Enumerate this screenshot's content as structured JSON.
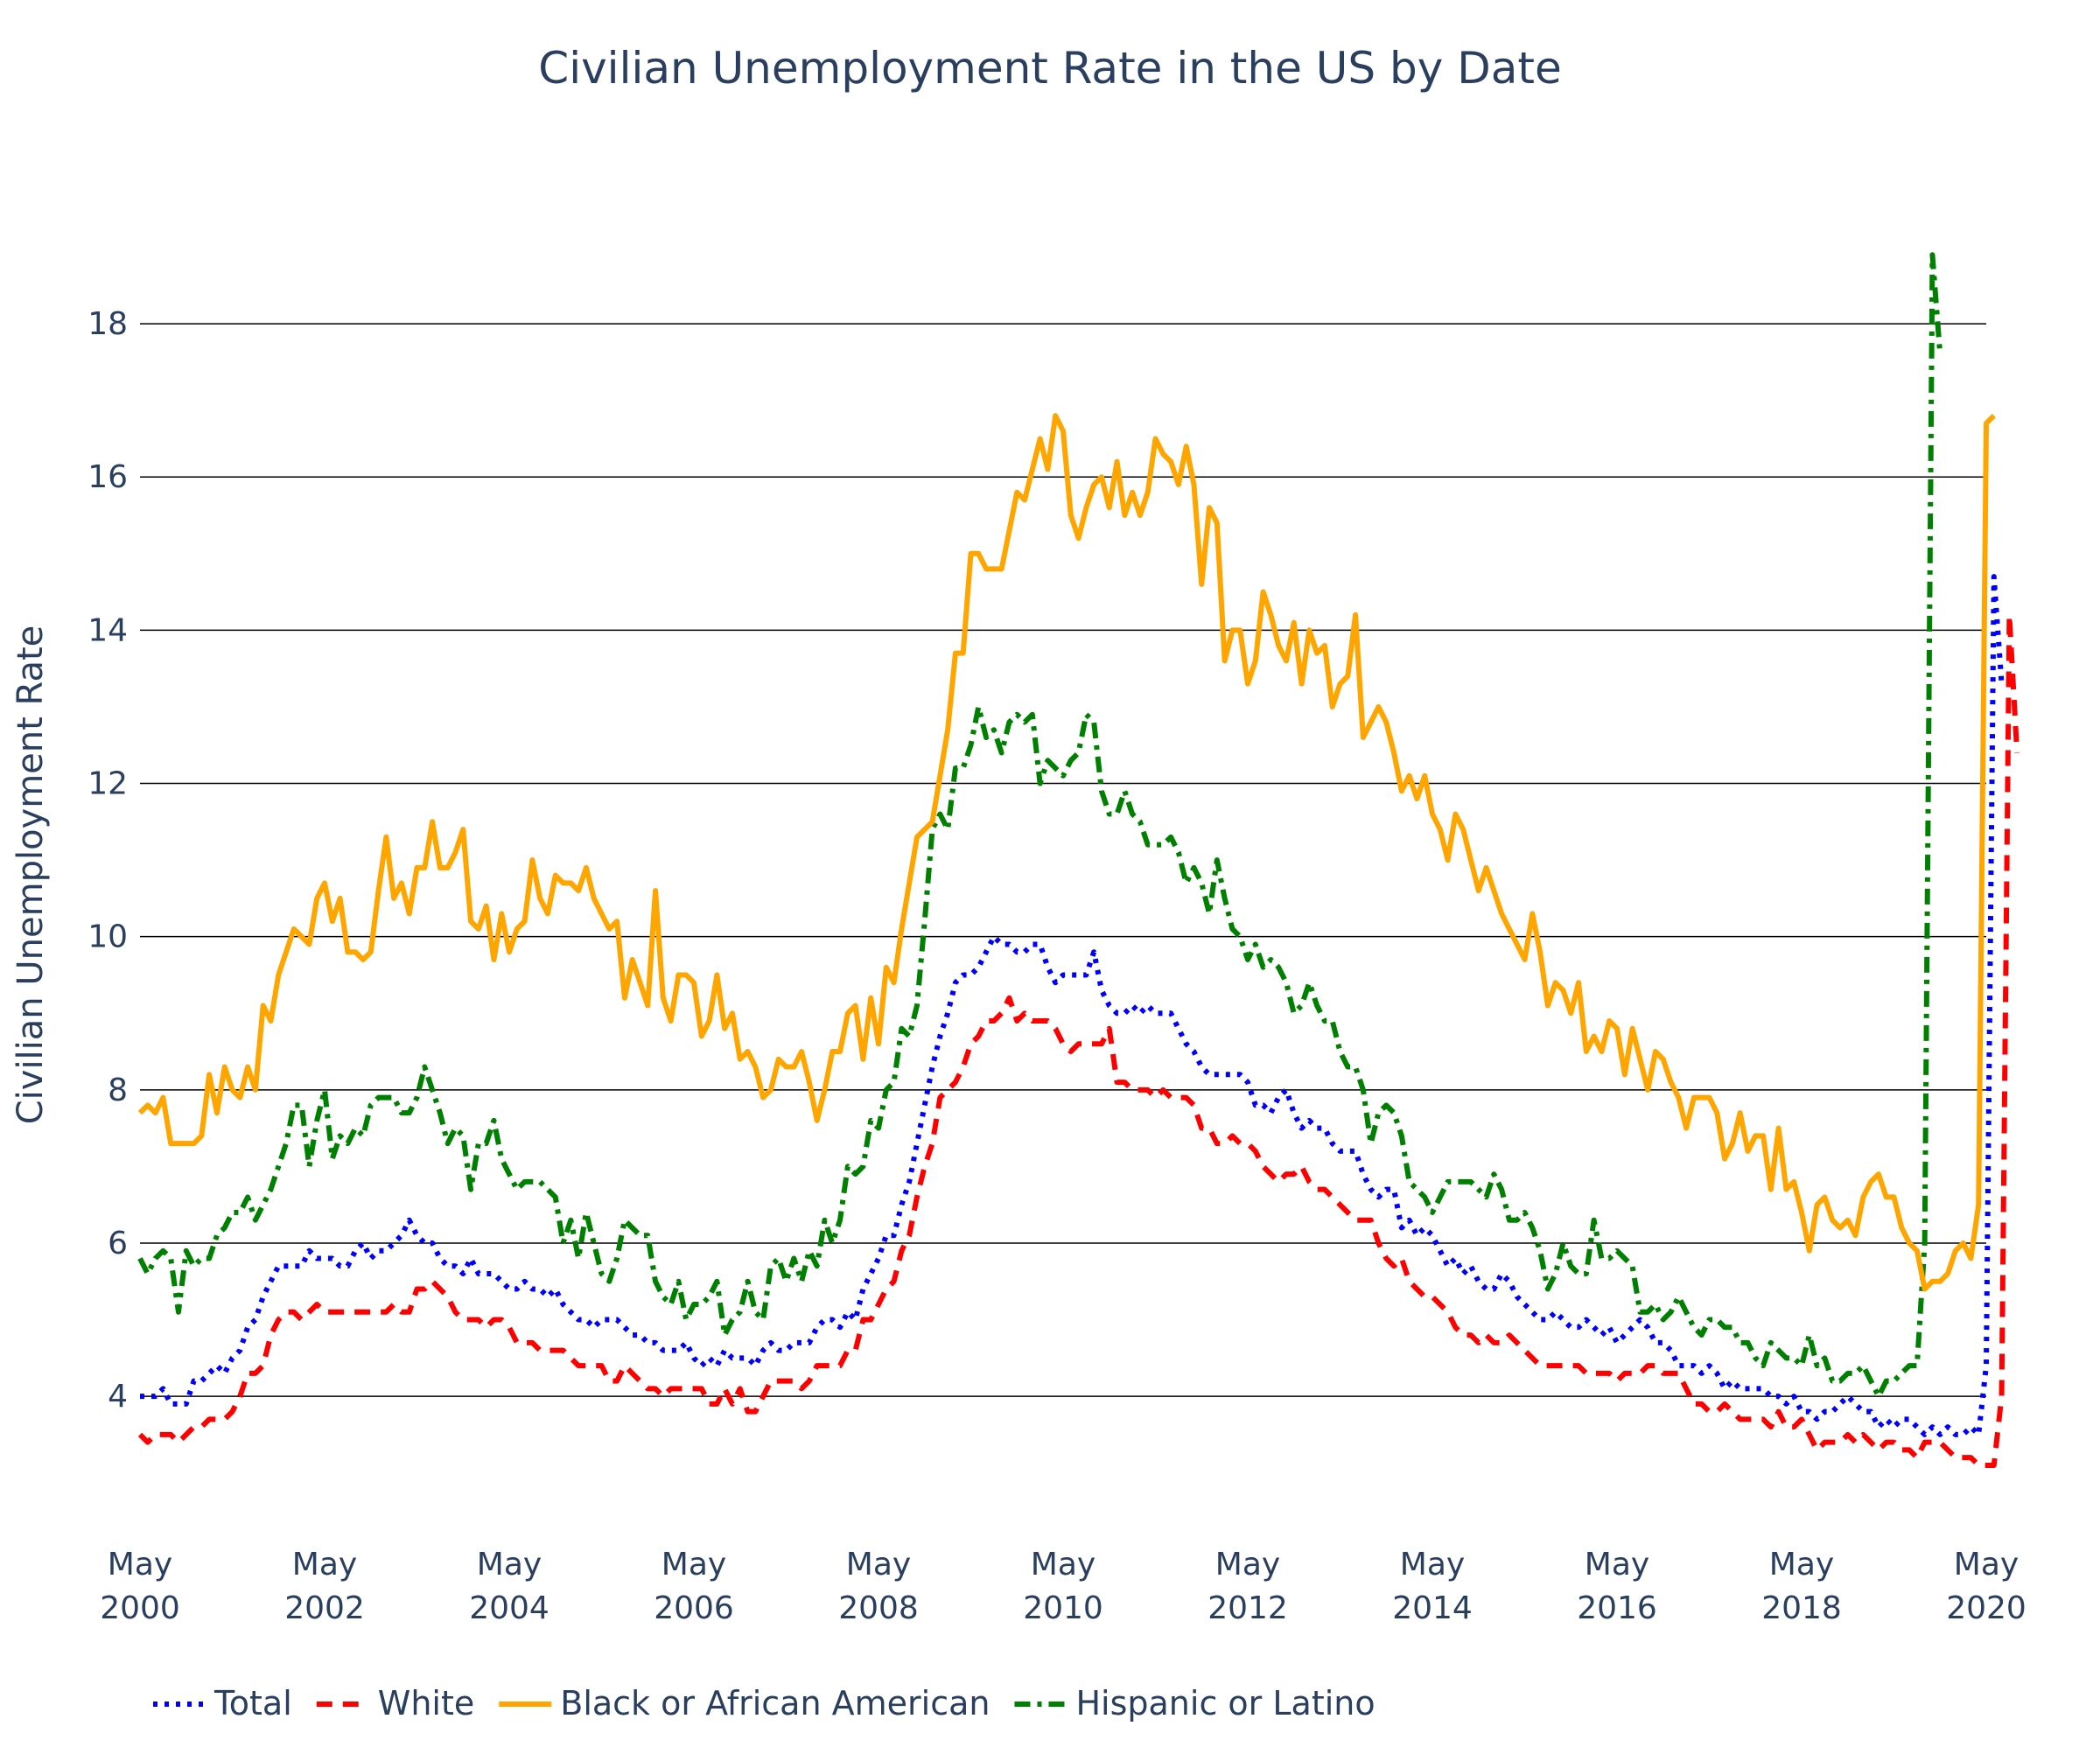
{
  "chart_data": {
    "type": "line",
    "title": "Civilian Unemployment Rate in the US by Date",
    "xlabel": "",
    "ylabel": "Civilian Unemployment Rate",
    "x_start": "2000-05",
    "x_end": "2020-05",
    "x_interval": "monthly",
    "xlim": [
      "2000-05",
      "2020-05"
    ],
    "ylim": [
      2.3,
      19.2
    ],
    "x_ticks": [
      {
        "x": "2000-05",
        "line1": "May",
        "line2": "2000"
      },
      {
        "x": "2002-05",
        "line1": "May",
        "line2": "2002"
      },
      {
        "x": "2004-05",
        "line1": "May",
        "line2": "2004"
      },
      {
        "x": "2006-05",
        "line1": "May",
        "line2": "2006"
      },
      {
        "x": "2008-05",
        "line1": "May",
        "line2": "2008"
      },
      {
        "x": "2010-05",
        "line1": "May",
        "line2": "2010"
      },
      {
        "x": "2012-05",
        "line1": "May",
        "line2": "2012"
      },
      {
        "x": "2014-05",
        "line1": "May",
        "line2": "2014"
      },
      {
        "x": "2016-05",
        "line1": "May",
        "line2": "2016"
      },
      {
        "x": "2018-05",
        "line1": "May",
        "line2": "2018"
      },
      {
        "x": "2020-05",
        "line1": "May",
        "line2": "2020"
      }
    ],
    "y_ticks": [
      "4",
      "6",
      "8",
      "10",
      "12",
      "14",
      "16",
      "18"
    ],
    "grid": {
      "horizontal": true,
      "vertical": false
    },
    "legend_position": "bottom-left",
    "series": [
      {
        "name": "Total",
        "color": "#0000ff",
        "dash": "dot",
        "values": [
          4.0,
          4.0,
          4.0,
          4.1,
          3.9,
          3.9,
          3.9,
          4.2,
          4.2,
          4.3,
          4.4,
          4.3,
          4.5,
          4.6,
          4.9,
          5.0,
          5.3,
          5.5,
          5.7,
          5.7,
          5.7,
          5.7,
          5.9,
          5.8,
          5.8,
          5.8,
          5.7,
          5.7,
          5.9,
          6.0,
          5.8,
          5.9,
          5.9,
          6.0,
          6.1,
          6.3,
          6.1,
          6.0,
          6.0,
          5.8,
          5.7,
          5.7,
          5.6,
          5.8,
          5.6,
          5.6,
          5.6,
          5.5,
          5.4,
          5.4,
          5.5,
          5.4,
          5.4,
          5.3,
          5.4,
          5.2,
          5.1,
          5.0,
          5.0,
          4.9,
          5.0,
          5.0,
          5.0,
          4.9,
          4.8,
          4.8,
          4.7,
          4.7,
          4.6,
          4.6,
          4.6,
          4.7,
          4.5,
          4.4,
          4.5,
          4.4,
          4.6,
          4.5,
          4.5,
          4.5,
          4.4,
          4.6,
          4.7,
          4.6,
          4.6,
          4.7,
          4.7,
          4.7,
          4.9,
          5.0,
          5.0,
          4.9,
          5.1,
          5.0,
          5.4,
          5.6,
          5.8,
          6.1,
          6.1,
          6.5,
          6.8,
          7.3,
          7.8,
          8.3,
          8.7,
          9.0,
          9.4,
          9.5,
          9.5,
          9.6,
          9.8,
          10.0,
          9.9,
          9.9,
          9.8,
          9.8,
          9.9,
          9.9,
          9.6,
          9.4,
          9.5,
          9.5,
          9.5,
          9.5,
          9.8,
          9.3,
          9.1,
          9.0,
          9.0,
          9.1,
          9.0,
          9.1,
          9.0,
          9.0,
          9.0,
          8.8,
          8.6,
          8.5,
          8.3,
          8.2,
          8.2,
          8.2,
          8.2,
          8.2,
          8.1,
          7.8,
          7.8,
          7.7,
          7.9,
          8.0,
          7.7,
          7.5,
          7.6,
          7.5,
          7.5,
          7.3,
          7.2,
          7.2,
          7.2,
          6.9,
          6.7,
          6.6,
          6.7,
          6.7,
          6.2,
          6.3,
          6.1,
          6.2,
          6.1,
          5.9,
          5.7,
          5.8,
          5.6,
          5.7,
          5.5,
          5.4,
          5.4,
          5.6,
          5.5,
          5.3,
          5.2,
          5.1,
          5.0,
          5.0,
          5.1,
          5.0,
          4.9,
          4.9,
          5.0,
          4.9,
          4.8,
          4.9,
          4.7,
          4.8,
          4.9,
          5.0,
          4.9,
          4.7,
          4.7,
          4.6,
          4.4,
          4.4,
          4.4,
          4.3,
          4.4,
          4.3,
          4.1,
          4.2,
          4.1,
          4.1,
          4.1,
          4.1,
          4.0,
          4.0,
          3.9,
          4.0,
          3.8,
          3.8,
          3.7,
          3.8,
          3.8,
          3.9,
          4.0,
          3.9,
          3.8,
          3.8,
          3.6,
          3.7,
          3.6,
          3.7,
          3.7,
          3.6,
          3.5,
          3.6,
          3.5,
          3.6,
          3.5,
          3.5,
          3.6,
          3.5,
          4.4,
          14.7,
          13.3
        ]
      },
      {
        "name": "White",
        "color": "#ff0000",
        "dash": "dash",
        "values": [
          3.5,
          3.4,
          3.5,
          3.5,
          3.5,
          3.4,
          3.5,
          3.6,
          3.6,
          3.7,
          3.7,
          3.7,
          3.8,
          4.0,
          4.3,
          4.3,
          4.4,
          4.8,
          5.0,
          5.1,
          5.1,
          5.0,
          5.1,
          5.2,
          5.1,
          5.1,
          5.1,
          5.1,
          5.1,
          5.1,
          5.1,
          5.1,
          5.1,
          5.2,
          5.1,
          5.1,
          5.4,
          5.4,
          5.5,
          5.4,
          5.3,
          5.1,
          5.0,
          5.0,
          5.0,
          4.9,
          5.0,
          5.0,
          4.9,
          4.7,
          4.7,
          4.7,
          4.6,
          4.6,
          4.6,
          4.6,
          4.5,
          4.4,
          4.4,
          4.4,
          4.4,
          4.2,
          4.2,
          4.4,
          4.3,
          4.2,
          4.1,
          4.1,
          4.0,
          4.1,
          4.1,
          4.1,
          4.1,
          4.1,
          3.9,
          3.9,
          4.1,
          3.9,
          4.1,
          3.8,
          3.8,
          4.0,
          4.2,
          4.2,
          4.2,
          4.2,
          4.1,
          4.2,
          4.4,
          4.4,
          4.4,
          4.4,
          4.6,
          4.6,
          5.0,
          5.0,
          5.2,
          5.4,
          5.5,
          5.9,
          6.1,
          6.6,
          7.0,
          7.3,
          7.9,
          8.0,
          8.1,
          8.3,
          8.6,
          8.7,
          8.9,
          8.9,
          9.0,
          9.2,
          8.9,
          9.0,
          8.9,
          8.9,
          8.9,
          8.8,
          8.6,
          8.5,
          8.6,
          8.6,
          8.6,
          8.6,
          8.8,
          8.1,
          8.1,
          8.0,
          8.0,
          8.0,
          7.9,
          8.0,
          7.9,
          7.9,
          7.9,
          7.8,
          7.5,
          7.5,
          7.3,
          7.3,
          7.4,
          7.3,
          7.3,
          7.2,
          7.0,
          6.9,
          6.8,
          6.9,
          6.9,
          7.0,
          6.8,
          6.7,
          6.7,
          6.6,
          6.5,
          6.4,
          6.3,
          6.3,
          6.3,
          6.0,
          5.8,
          5.7,
          5.8,
          5.5,
          5.4,
          5.3,
          5.3,
          5.2,
          5.1,
          4.9,
          4.8,
          4.8,
          4.7,
          4.8,
          4.7,
          4.7,
          4.8,
          4.7,
          4.6,
          4.5,
          4.4,
          4.4,
          4.4,
          4.4,
          4.4,
          4.4,
          4.3,
          4.3,
          4.3,
          4.3,
          4.2,
          4.3,
          4.3,
          4.3,
          4.4,
          4.4,
          4.3,
          4.3,
          4.3,
          4.1,
          3.9,
          3.9,
          3.8,
          3.8,
          3.9,
          3.8,
          3.7,
          3.7,
          3.7,
          3.7,
          3.6,
          3.8,
          3.6,
          3.6,
          3.7,
          3.5,
          3.3,
          3.4,
          3.4,
          3.4,
          3.5,
          3.4,
          3.5,
          3.4,
          3.3,
          3.4,
          3.4,
          3.3,
          3.3,
          3.2,
          3.4,
          3.4,
          3.4,
          3.3,
          3.2,
          3.2,
          3.2,
          3.1,
          3.1,
          3.1,
          4.0,
          14.2,
          12.4
        ]
      },
      {
        "name": "Black or African American",
        "color": "#ffa500",
        "dash": "solid",
        "values": [
          7.7,
          7.8,
          7.7,
          7.9,
          7.3,
          7.3,
          7.3,
          7.3,
          7.4,
          8.2,
          7.7,
          8.3,
          8.0,
          7.9,
          8.3,
          8.0,
          9.1,
          8.9,
          9.5,
          9.8,
          10.1,
          10.0,
          9.9,
          10.5,
          10.7,
          10.2,
          10.5,
          9.8,
          9.8,
          9.7,
          9.8,
          10.6,
          11.3,
          10.5,
          10.7,
          10.3,
          10.9,
          10.9,
          11.5,
          10.9,
          10.9,
          11.1,
          11.4,
          10.2,
          10.1,
          10.4,
          9.7,
          10.3,
          9.8,
          10.1,
          10.2,
          11.0,
          10.5,
          10.3,
          10.8,
          10.7,
          10.7,
          10.6,
          10.9,
          10.5,
          10.3,
          10.1,
          10.2,
          9.2,
          9.7,
          9.4,
          9.1,
          10.6,
          9.2,
          8.9,
          9.5,
          9.5,
          9.4,
          8.7,
          8.9,
          9.5,
          8.8,
          9.0,
          8.4,
          8.5,
          8.3,
          7.9,
          8.0,
          8.4,
          8.3,
          8.3,
          8.5,
          8.1,
          7.6,
          8.0,
          8.5,
          8.5,
          9.0,
          9.1,
          8.4,
          9.2,
          8.6,
          9.6,
          9.4,
          10.1,
          10.7,
          11.3,
          11.4,
          11.5,
          12.1,
          12.7,
          13.7,
          13.7,
          15.0,
          15.0,
          14.8,
          14.8,
          14.8,
          15.3,
          15.8,
          15.7,
          16.1,
          16.5,
          16.1,
          16.8,
          16.6,
          15.5,
          15.2,
          15.6,
          15.9,
          16.0,
          15.6,
          16.2,
          15.5,
          15.8,
          15.5,
          15.8,
          16.5,
          16.3,
          16.2,
          15.9,
          16.4,
          15.9,
          14.6,
          15.6,
          15.4,
          13.6,
          14.0,
          14.0,
          13.3,
          13.6,
          14.5,
          14.2,
          13.8,
          13.6,
          14.1,
          13.3,
          14.0,
          13.7,
          13.8,
          13.0,
          13.3,
          13.4,
          14.2,
          12.6,
          12.8,
          13.0,
          12.8,
          12.4,
          11.9,
          12.1,
          11.8,
          12.1,
          11.6,
          11.4,
          11.0,
          11.6,
          11.4,
          11.0,
          10.6,
          10.9,
          10.6,
          10.3,
          10.1,
          9.9,
          9.7,
          10.3,
          9.8,
          9.1,
          9.4,
          9.3,
          9.0,
          9.4,
          8.5,
          8.7,
          8.5,
          8.9,
          8.8,
          8.2,
          8.8,
          8.4,
          8.0,
          8.5,
          8.4,
          8.1,
          7.9,
          7.5,
          7.9,
          7.9,
          7.9,
          7.7,
          7.1,
          7.3,
          7.7,
          7.2,
          7.4,
          7.4,
          6.7,
          7.5,
          6.7,
          6.8,
          6.4,
          5.9,
          6.5,
          6.6,
          6.3,
          6.2,
          6.3,
          6.1,
          6.6,
          6.8,
          6.9,
          6.6,
          6.6,
          6.2,
          6.0,
          5.9,
          5.4,
          5.5,
          5.5,
          5.6,
          5.9,
          6.0,
          5.8,
          6.5,
          16.7,
          16.8
        ]
      },
      {
        "name": "Hispanic or Latino",
        "color": "#008000",
        "dash": "dashdot",
        "values": [
          5.8,
          5.6,
          5.8,
          5.9,
          5.8,
          5.1,
          5.9,
          5.7,
          5.8,
          5.8,
          6.1,
          6.2,
          6.4,
          6.4,
          6.6,
          6.3,
          6.5,
          6.7,
          7.0,
          7.3,
          7.8,
          7.8,
          7.0,
          7.6,
          8.0,
          7.1,
          7.4,
          7.3,
          7.5,
          7.4,
          7.8,
          7.9,
          7.9,
          7.9,
          7.7,
          7.7,
          7.9,
          8.3,
          8.0,
          7.7,
          7.3,
          7.5,
          7.4,
          6.7,
          7.3,
          7.3,
          7.6,
          7.1,
          6.9,
          6.7,
          6.8,
          6.8,
          6.8,
          6.7,
          6.6,
          6.0,
          6.3,
          5.8,
          6.4,
          6.0,
          5.6,
          5.5,
          5.8,
          6.3,
          6.2,
          6.1,
          6.1,
          5.5,
          5.3,
          5.2,
          5.5,
          5.0,
          5.2,
          5.2,
          5.3,
          5.5,
          4.8,
          5.0,
          5.1,
          5.5,
          5.1,
          5.0,
          5.7,
          5.8,
          5.5,
          5.8,
          5.5,
          5.9,
          5.7,
          6.3,
          6.0,
          6.3,
          7.0,
          6.9,
          7.0,
          7.6,
          7.5,
          8.0,
          8.1,
          8.8,
          8.7,
          9.1,
          10.2,
          11.4,
          11.6,
          11.4,
          12.2,
          12.2,
          12.5,
          13.0,
          12.6,
          12.7,
          12.4,
          12.8,
          12.9,
          12.8,
          12.9,
          12.0,
          12.3,
          12.2,
          12.1,
          12.3,
          12.4,
          12.9,
          12.8,
          11.9,
          11.6,
          11.6,
          11.9,
          11.6,
          11.5,
          11.2,
          11.2,
          11.2,
          11.3,
          11.1,
          10.7,
          10.9,
          10.7,
          10.3,
          11.0,
          10.5,
          10.1,
          10.0,
          9.7,
          9.9,
          9.6,
          9.7,
          9.6,
          9.4,
          9.0,
          9.1,
          9.4,
          9.1,
          8.9,
          8.9,
          8.5,
          8.3,
          8.3,
          8.0,
          7.3,
          7.7,
          7.8,
          7.7,
          7.4,
          6.8,
          6.7,
          6.6,
          6.4,
          6.6,
          6.8,
          6.8,
          6.8,
          6.8,
          6.7,
          6.6,
          6.9,
          6.7,
          6.3,
          6.3,
          6.4,
          6.2,
          5.9,
          5.4,
          5.6,
          6.0,
          5.7,
          5.6,
          5.6,
          6.3,
          5.8,
          5.8,
          5.9,
          5.8,
          5.7,
          5.1,
          5.1,
          5.2,
          5.0,
          5.1,
          5.3,
          5.1,
          4.9,
          4.8,
          5.0,
          5.0,
          4.9,
          4.9,
          4.7,
          4.7,
          4.5,
          4.4,
          4.7,
          4.6,
          4.5,
          4.5,
          4.4,
          4.8,
          4.4,
          4.5,
          4.2,
          4.2,
          4.3,
          4.3,
          4.4,
          4.2,
          4.0,
          4.2,
          4.2,
          4.3,
          4.4,
          4.4,
          6.0,
          18.9,
          17.6
        ]
      }
    ]
  }
}
